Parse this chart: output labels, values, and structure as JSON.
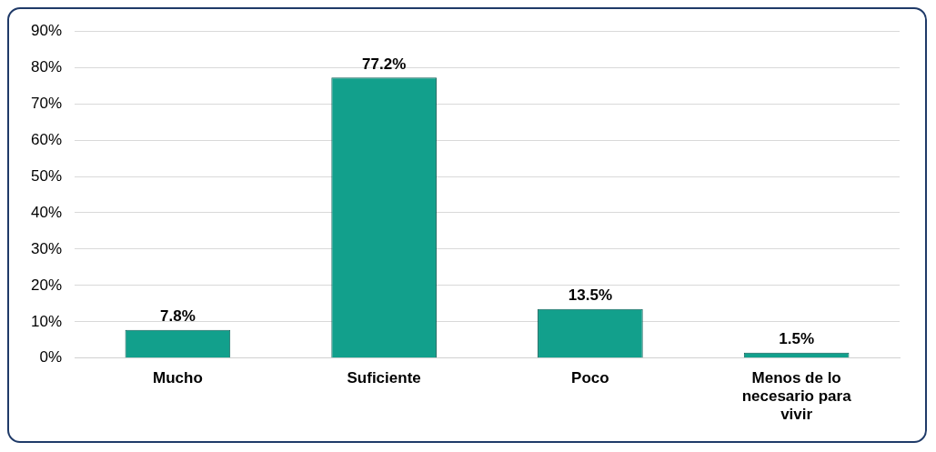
{
  "chart_data": {
    "type": "bar",
    "categories": [
      "Mucho",
      "Suficiente",
      "Poco",
      "Menos de lo necesario para vivir"
    ],
    "values": [
      7.8,
      77.2,
      13.5,
      1.5
    ],
    "value_labels": [
      "7.8%",
      "77.2%",
      "13.5%",
      "1.5%"
    ],
    "color": "#12a08c",
    "ylim": [
      0,
      90
    ],
    "yticks": [
      {
        "value": 0,
        "label": "0%"
      },
      {
        "value": 10,
        "label": "10%"
      },
      {
        "value": 20,
        "label": "20%"
      },
      {
        "value": 30,
        "label": "30%"
      },
      {
        "value": 40,
        "label": "40%"
      },
      {
        "value": 50,
        "label": "50%"
      },
      {
        "value": 60,
        "label": "60%"
      },
      {
        "value": 70,
        "label": "70%"
      },
      {
        "value": 80,
        "label": "80%"
      },
      {
        "value": 90,
        "label": "90%"
      }
    ],
    "grid": "y",
    "legend": false
  }
}
